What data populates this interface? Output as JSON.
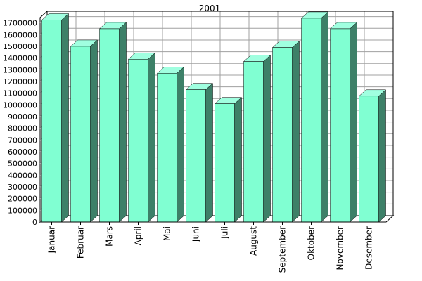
{
  "chart_data": {
    "type": "bar",
    "title": "2001",
    "xlabel": "",
    "ylabel": "",
    "ylim": [
      0,
      1750000
    ],
    "ytick_step": 100000,
    "grid": true,
    "legend": "none",
    "colors": {
      "bar_front": "#80ffd2",
      "bar_top": "#a0ffe0",
      "bar_side": "#3d8068",
      "grid": "#a0a0a0",
      "back_wall": "#ffffff",
      "frame": "#000000"
    },
    "categories": [
      "Januar",
      "Februar",
      "Mars",
      "April",
      "Mai",
      "Juni",
      "Juli",
      "August",
      "September",
      "Oktober",
      "November",
      "Desember"
    ],
    "values": [
      1725000,
      1500000,
      1650000,
      1390000,
      1270000,
      1130000,
      1010000,
      1370000,
      1490000,
      1740000,
      1650000,
      1075000
    ],
    "yticks": [
      "0",
      "100000",
      "200000",
      "300000",
      "400000",
      "500000",
      "600000",
      "700000",
      "800000",
      "900000",
      "1000000",
      "1100000",
      "1200000",
      "1300000",
      "1400000",
      "1500000",
      "1600000",
      "1700000"
    ]
  }
}
